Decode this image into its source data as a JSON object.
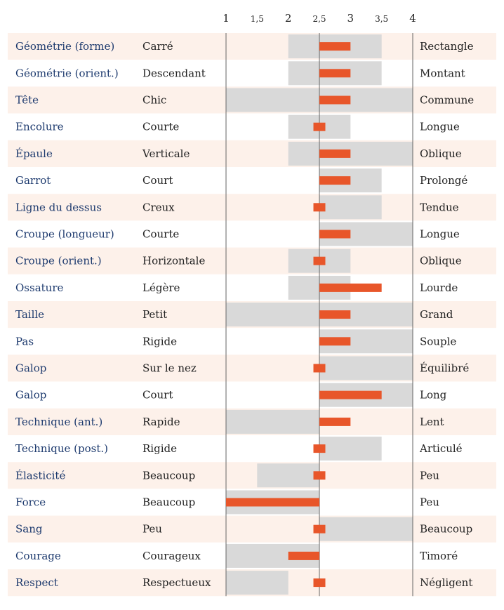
{
  "chart_data": {
    "type": "bar",
    "xlim": [
      1,
      4
    ],
    "ticks": [
      "1",
      "1,5",
      "2",
      "2,5",
      "3",
      "3,5",
      "4"
    ],
    "tick_values": [
      1,
      1.5,
      2,
      2.5,
      3,
      3.5,
      4
    ],
    "baseline": 2.5,
    "colors": {
      "row_odd": "#fdf1ea",
      "row_even": "#ffffff",
      "range": "#d9d9d9",
      "bar": "#e8562a",
      "trait_text": "#1d3a6e",
      "axis_line": "#666666"
    },
    "rows": [
      {
        "trait": "Géométrie (forme)",
        "low": "Carré",
        "high": "Rectangle",
        "range": [
          2,
          3.5
        ],
        "value": 3
      },
      {
        "trait": "Géométrie (orient.)",
        "low": "Descendant",
        "high": "Montant",
        "range": [
          2,
          3.5
        ],
        "value": 3
      },
      {
        "trait": "Tête",
        "low": "Chic",
        "high": "Commune",
        "range": [
          1,
          4
        ],
        "value": 3
      },
      {
        "trait": "Encolure",
        "low": "Courte",
        "high": "Longue",
        "range": [
          2,
          3
        ],
        "value": 2.5
      },
      {
        "trait": "Épaule",
        "low": "Verticale",
        "high": "Oblique",
        "range": [
          2,
          4
        ],
        "value": 3
      },
      {
        "trait": "Garrot",
        "low": "Court",
        "high": "Prolongé",
        "range": [
          2.5,
          3.5
        ],
        "value": 3
      },
      {
        "trait": "Ligne du dessus",
        "low": "Creux",
        "high": "Tendue",
        "range": [
          2.5,
          3.5
        ],
        "value": 2.5
      },
      {
        "trait": "Croupe (longueur)",
        "low": "Courte",
        "high": "Longue",
        "range": [
          2.5,
          4
        ],
        "value": 3
      },
      {
        "trait": "Croupe (orient.)",
        "low": "Horizontale",
        "high": "Oblique",
        "range": [
          2,
          3
        ],
        "value": 2.5
      },
      {
        "trait": "Ossature",
        "low": "Légère",
        "high": "Lourde",
        "range": [
          2,
          3
        ],
        "value": 3.5
      },
      {
        "trait": "Taille",
        "low": "Petit",
        "high": "Grand",
        "range": [
          1,
          4
        ],
        "value": 3
      },
      {
        "trait": "Pas",
        "low": "Rigide",
        "high": "Souple",
        "range": [
          2.5,
          4
        ],
        "value": 3
      },
      {
        "trait": "Galop",
        "low": "Sur le nez",
        "high": "Équilibré",
        "range": [
          2.5,
          4
        ],
        "value": 2.5
      },
      {
        "trait": "Galop",
        "low": "Court",
        "high": "Long",
        "range": [
          2.5,
          4
        ],
        "value": 3.5
      },
      {
        "trait": "Technique (ant.)",
        "low": "Rapide",
        "high": "Lent",
        "range": [
          1,
          2.5
        ],
        "value": 3
      },
      {
        "trait": "Technique (post.)",
        "low": "Rigide",
        "high": "Articulé",
        "range": [
          2.5,
          3.5
        ],
        "value": 2.5
      },
      {
        "trait": "Élasticité",
        "low": "Beaucoup",
        "high": "Peu",
        "range": [
          1.5,
          2.5
        ],
        "value": 2.5
      },
      {
        "trait": "Force",
        "low": "Beaucoup",
        "high": "Peu",
        "range": [
          1,
          2.5
        ],
        "value": 1
      },
      {
        "trait": "Sang",
        "low": "Peu",
        "high": "Beaucoup",
        "range": [
          2.5,
          4
        ],
        "value": 2.5
      },
      {
        "trait": "Courage",
        "low": "Courageux",
        "high": "Timoré",
        "range": [
          1,
          2.5
        ],
        "value": 2
      },
      {
        "trait": "Respect",
        "low": "Respectueux",
        "high": "Négligent",
        "range": [
          1,
          2
        ],
        "value": 2.5
      }
    ]
  }
}
